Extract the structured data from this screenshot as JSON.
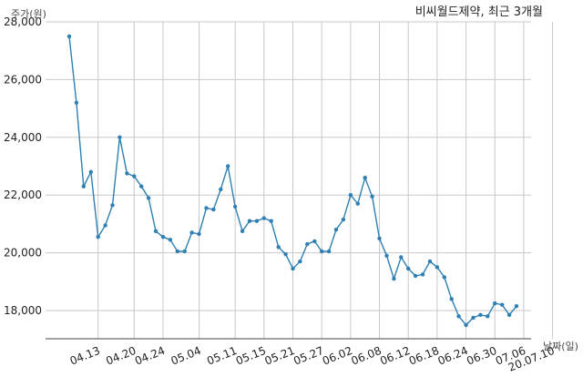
{
  "chart_data": {
    "type": "line",
    "title": "비씨월드제약, 최근 3개월",
    "ylabel": "주가(원)",
    "xlabel": "날짜(일)",
    "ylim": [
      17000,
      28000
    ],
    "yticks": [
      18000,
      20000,
      22000,
      24000,
      26000,
      28000
    ],
    "ytick_labels": [
      "18,000",
      "20,000",
      "22,000",
      "24,000",
      "26,000",
      "28,000"
    ],
    "xticks": [
      {
        "i": 4,
        "label": "04.13"
      },
      {
        "i": 9,
        "label": "04.20"
      },
      {
        "i": 13,
        "label": "04.24"
      },
      {
        "i": 18,
        "label": "05.04"
      },
      {
        "i": 23,
        "label": "05.11"
      },
      {
        "i": 27,
        "label": "05.15"
      },
      {
        "i": 31,
        "label": "05.21"
      },
      {
        "i": 35,
        "label": "05.27"
      },
      {
        "i": 39,
        "label": "06.02"
      },
      {
        "i": 43,
        "label": "06.08"
      },
      {
        "i": 47,
        "label": "06.12"
      },
      {
        "i": 51,
        "label": "06.18"
      },
      {
        "i": 55,
        "label": "06.24"
      },
      {
        "i": 59,
        "label": "06.30"
      },
      {
        "i": 63,
        "label": "07.06"
      },
      {
        "i": 67,
        "label": "20.07.10"
      }
    ],
    "grid": true,
    "color": "#2e7fb3",
    "series": [
      {
        "values": [
          27500,
          25200,
          22300,
          22800,
          20550,
          20950,
          21650,
          24000,
          22750,
          22650,
          22300,
          21900,
          20750,
          20550,
          20450,
          20050,
          20050,
          20700,
          20650,
          21550,
          21500,
          22200,
          23000,
          21600,
          20750,
          21100,
          21100,
          21200,
          21100,
          20200,
          19950,
          19450,
          19700,
          20300,
          20400,
          20050,
          20050,
          20800,
          21150,
          22000,
          21700,
          22600,
          21950,
          20500,
          19900,
          19100,
          19850,
          19450,
          19200,
          19250,
          19700,
          19500,
          19150,
          18400,
          17800,
          17500,
          17750,
          17850,
          17800,
          18250,
          18200,
          17850,
          18150
        ]
      }
    ]
  }
}
